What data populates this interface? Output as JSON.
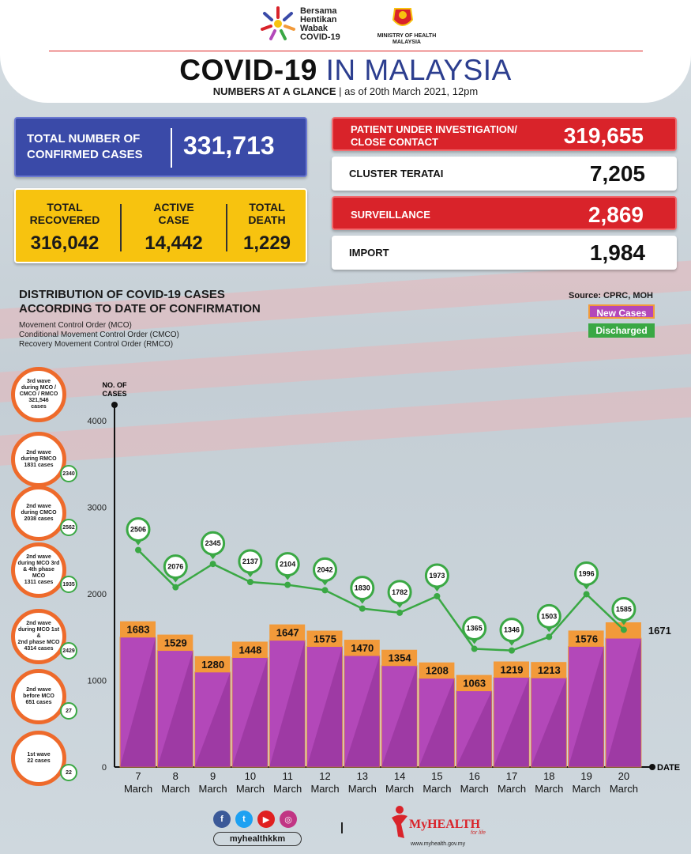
{
  "header": {
    "campaign_text": [
      "Bersama",
      "Hentikan",
      "Wabak",
      "COVID-19"
    ],
    "ministry": [
      "MINISTRY OF HEALTH",
      "MALAYSIA"
    ],
    "title_bold": "COVID-19",
    "title_normal": "IN MALAYSIA",
    "subtitle_bold": "NUMBERS AT A GLANCE",
    "subtitle_rest": " | as of 20th March 2021, 12pm"
  },
  "stats": {
    "confirmed_label": [
      "TOTAL NUMBER OF",
      "CONFIRMED CASES"
    ],
    "confirmed_value": "331,713",
    "recovered_label": [
      "TOTAL",
      "RECOVERED"
    ],
    "recovered_value": "316,042",
    "active_label": [
      "ACTIVE",
      "CASE"
    ],
    "active_value": "14,442",
    "death_label": [
      "TOTAL",
      "DEATH"
    ],
    "death_value": "1,229",
    "pui_label": [
      "PATIENT UNDER INVESTIGATION/",
      "CLOSE CONTACT"
    ],
    "pui_value": "319,655",
    "cluster_label": "CLUSTER TERATAI",
    "cluster_value": "7,205",
    "surveillance_label": "SURVEILLANCE",
    "surveillance_value": "2,869",
    "import_label": "IMPORT",
    "import_value": "1,984"
  },
  "section": {
    "title": [
      "DISTRIBUTION OF COVID-19 CASES",
      "ACCORDING TO DATE OF CONFIRMATION"
    ],
    "notes": [
      "Movement Control Order (MCO)",
      "Conditional Movement Control Order (CMCO)",
      "Recovery Movement Control Order (RMCO)"
    ],
    "source": "Source: CPRC, MOH"
  },
  "waves": [
    {
      "lines": [
        "3rd wave",
        "during MCO /",
        "CMCO / RMCO",
        "321,546",
        "cases"
      ],
      "badge": ""
    },
    {
      "lines": [
        "2nd wave",
        "during RMCO",
        "1831 cases"
      ],
      "badge": "2340"
    },
    {
      "lines": [
        "2nd wave",
        "during CMCO",
        "2038 cases"
      ],
      "badge": "2562"
    },
    {
      "lines": [
        "2nd wave",
        "during MCO 3rd",
        "& 4th phase MCO",
        "1311 cases"
      ],
      "badge": "1935"
    },
    {
      "lines": [
        "2nd wave",
        "during MCO 1st &",
        "2nd phase MCO",
        "4314 cases"
      ],
      "badge": "2429"
    },
    {
      "lines": [
        "2nd wave",
        "before MCO",
        "651 cases"
      ],
      "badge": "27"
    },
    {
      "lines": [
        "1st wave",
        "22 cases"
      ],
      "badge": "22"
    }
  ],
  "footer": {
    "handle": "myhealthkkm",
    "brand": "MyHEALTH",
    "tagline": "for life",
    "url": "www.myhealth.gov.my"
  },
  "colors": {
    "new_cases_bar": "#b348b9",
    "bar_cap": "#f29a3a",
    "discharged_line": "#3aa844",
    "accent_red": "#d9232a",
    "accent_blue": "#3a4aa8",
    "accent_yellow": "#f7c30f"
  },
  "chart_data": {
    "type": "bar",
    "ylabel": "NO. OF CASES",
    "xlabel": "DATE",
    "ylim": [
      0,
      4000
    ],
    "yticks": [
      0,
      1000,
      2000,
      3000,
      4000
    ],
    "categories": [
      "7 March",
      "8 March",
      "9 March",
      "10 March",
      "11 March",
      "12 March",
      "13 March",
      "14 March",
      "15 March",
      "16 March",
      "17 March",
      "18 March",
      "19 March",
      "20 March"
    ],
    "category_day": [
      "7",
      "8",
      "9",
      "10",
      "11",
      "12",
      "13",
      "14",
      "15",
      "16",
      "17",
      "18",
      "19",
      "20"
    ],
    "category_month": "March",
    "series": [
      {
        "name": "New Cases",
        "type": "bar",
        "values": [
          1683,
          1529,
          1280,
          1448,
          1647,
          1575,
          1470,
          1354,
          1208,
          1063,
          1219,
          1213,
          1576,
          1671
        ]
      },
      {
        "name": "Discharged",
        "type": "line",
        "values": [
          2506,
          2076,
          2345,
          2137,
          2104,
          2042,
          1830,
          1782,
          1973,
          1365,
          1346,
          1503,
          1996,
          1585
        ]
      }
    ],
    "legend": "top-right"
  }
}
